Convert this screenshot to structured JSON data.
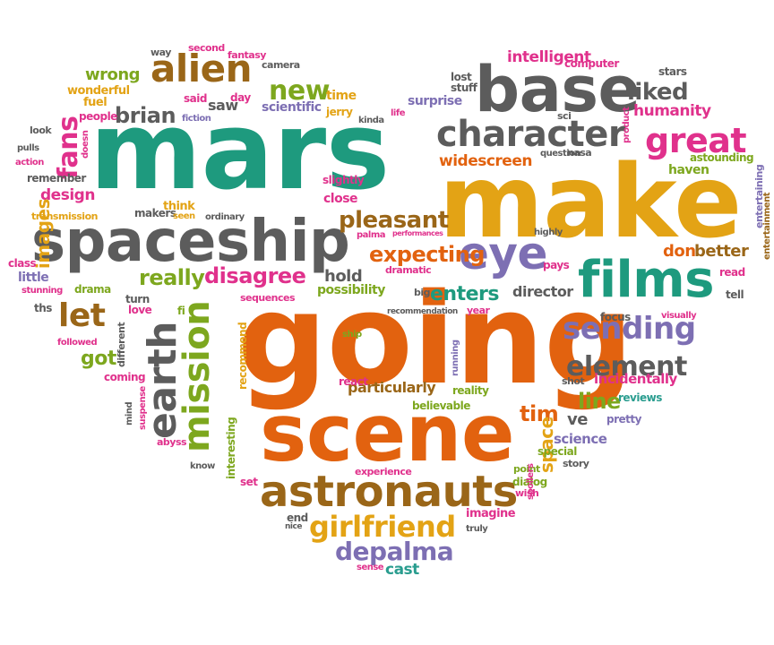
{
  "palette": {
    "green": "#1e9a7e",
    "orange": "#e2620f",
    "gold": "#e3a315",
    "gray": "#5c5c5c",
    "purple": "#7d6fb3",
    "brown": "#9a6618",
    "olive": "#7da71e",
    "pink": "#e0318c",
    "teal": "#2a9d8f"
  },
  "words": [
    {
      "text": "mars",
      "color": "green"
    },
    {
      "text": "make",
      "color": "gold"
    },
    {
      "text": "going",
      "color": "orange"
    },
    {
      "text": "scene",
      "color": "orange"
    },
    {
      "text": "base",
      "color": "gray"
    },
    {
      "text": "spaceship",
      "color": "gray"
    },
    {
      "text": "films",
      "color": "green"
    },
    {
      "text": "character",
      "color": "gray"
    },
    {
      "text": "astronauts",
      "color": "brown"
    },
    {
      "text": "eye",
      "color": "purple"
    },
    {
      "text": "great",
      "color": "pink"
    },
    {
      "text": "alien",
      "color": "brown"
    },
    {
      "text": "earth",
      "color": "gray"
    },
    {
      "text": "mission",
      "color": "olive"
    },
    {
      "text": "sending",
      "color": "purple"
    },
    {
      "text": "element",
      "color": "gray"
    },
    {
      "text": "girlfriend",
      "color": "gold"
    },
    {
      "text": "depalma",
      "color": "purple"
    },
    {
      "text": "new",
      "color": "olive"
    },
    {
      "text": "brian",
      "color": "gray"
    },
    {
      "text": "liked",
      "color": "gray"
    },
    {
      "text": "let",
      "color": "brown"
    },
    {
      "text": "fans",
      "color": "pink"
    },
    {
      "text": "pleasant",
      "color": "brown"
    },
    {
      "text": "expecting",
      "color": "orange"
    },
    {
      "text": "really",
      "color": "olive"
    },
    {
      "text": "disagree",
      "color": "pink"
    },
    {
      "text": "enters",
      "color": "green"
    },
    {
      "text": "widescreen",
      "color": "orange"
    },
    {
      "text": "intelligent",
      "color": "pink"
    },
    {
      "text": "humanity",
      "color": "pink"
    },
    {
      "text": "images",
      "color": "gold"
    },
    {
      "text": "design",
      "color": "pink"
    },
    {
      "text": "particularly",
      "color": "brown"
    },
    {
      "text": "line",
      "color": "olive"
    },
    {
      "text": "incidentally",
      "color": "pink"
    },
    {
      "text": "don",
      "color": "orange"
    },
    {
      "text": "better",
      "color": "brown"
    },
    {
      "text": "tim",
      "color": "orange"
    },
    {
      "text": "got",
      "color": "olive"
    },
    {
      "text": "hold",
      "color": "gray"
    },
    {
      "text": "possibility",
      "color": "olive"
    },
    {
      "text": "director",
      "color": "gray"
    },
    {
      "text": "wrong",
      "color": "olive"
    },
    {
      "text": "space",
      "color": "gold"
    },
    {
      "text": "science",
      "color": "purple"
    },
    {
      "text": "cast",
      "color": "teal"
    },
    {
      "text": "scientific",
      "color": "purple"
    },
    {
      "text": "slightly",
      "color": "pink"
    },
    {
      "text": "close",
      "color": "pink"
    },
    {
      "text": "haven",
      "color": "olive"
    },
    {
      "text": "saw",
      "color": "gray"
    },
    {
      "text": "little",
      "color": "purple"
    },
    {
      "text": "surprise",
      "color": "purple"
    },
    {
      "text": "believable",
      "color": "olive"
    },
    {
      "text": "reality",
      "color": "olive"
    },
    {
      "text": "reviews",
      "color": "teal"
    },
    {
      "text": "pretty",
      "color": "purple"
    },
    {
      "text": "ve",
      "color": "gray"
    },
    {
      "text": "focus",
      "color": "gray"
    },
    {
      "text": "drama",
      "color": "olive"
    },
    {
      "text": "turn",
      "color": "gray"
    },
    {
      "text": "love",
      "color": "pink"
    },
    {
      "text": "coming",
      "color": "pink"
    },
    {
      "text": "different",
      "color": "gray"
    },
    {
      "text": "interesting",
      "color": "olive"
    },
    {
      "text": "recommend",
      "color": "gold"
    },
    {
      "text": "set",
      "color": "pink"
    },
    {
      "text": "end",
      "color": "gray"
    },
    {
      "text": "imagine",
      "color": "pink"
    },
    {
      "text": "dialog",
      "color": "olive"
    },
    {
      "text": "special",
      "color": "olive"
    },
    {
      "text": "story",
      "color": "gray"
    },
    {
      "text": "point",
      "color": "olive"
    },
    {
      "text": "wish",
      "color": "pink"
    },
    {
      "text": "experience",
      "color": "pink"
    },
    {
      "text": "react",
      "color": "pink"
    },
    {
      "text": "shot",
      "color": "gray"
    },
    {
      "text": "dramatic",
      "color": "pink"
    },
    {
      "text": "big",
      "color": "gray"
    },
    {
      "text": "year",
      "color": "pink"
    },
    {
      "text": "pays",
      "color": "pink"
    },
    {
      "text": "read",
      "color": "pink"
    },
    {
      "text": "tell",
      "color": "gray"
    },
    {
      "text": "visually",
      "color": "pink"
    },
    {
      "text": "astounding",
      "color": "olive"
    },
    {
      "text": "entertaining",
      "color": "purple"
    },
    {
      "text": "entertainment",
      "color": "brown"
    },
    {
      "text": "stars",
      "color": "gray"
    },
    {
      "text": "computer",
      "color": "pink"
    },
    {
      "text": "lost",
      "color": "gray"
    },
    {
      "text": "stuff",
      "color": "gray"
    },
    {
      "text": "sci",
      "color": "gray"
    },
    {
      "text": "fi",
      "color": "olive"
    },
    {
      "text": "question",
      "color": "gray"
    },
    {
      "text": "nasa",
      "color": "gray"
    },
    {
      "text": "product",
      "color": "pink"
    },
    {
      "text": "highly",
      "color": "gray"
    },
    {
      "text": "time",
      "color": "gold"
    },
    {
      "text": "jerry",
      "color": "gold"
    },
    {
      "text": "kinda",
      "color": "gray"
    },
    {
      "text": "life",
      "color": "pink"
    },
    {
      "text": "way",
      "color": "gray"
    },
    {
      "text": "second",
      "color": "pink"
    },
    {
      "text": "fantasy",
      "color": "pink"
    },
    {
      "text": "camera",
      "color": "gray"
    },
    {
      "text": "wonderful",
      "color": "gold"
    },
    {
      "text": "fuel",
      "color": "gold"
    },
    {
      "text": "people",
      "color": "pink"
    },
    {
      "text": "said",
      "color": "pink"
    },
    {
      "text": "day",
      "color": "pink"
    },
    {
      "text": "fiction",
      "color": "purple"
    },
    {
      "text": "look",
      "color": "gray"
    },
    {
      "text": "pulls",
      "color": "gray"
    },
    {
      "text": "action",
      "color": "pink"
    },
    {
      "text": "doesn",
      "color": "pink"
    },
    {
      "text": "remember",
      "color": "gray"
    },
    {
      "text": "transmission",
      "color": "gold"
    },
    {
      "text": "makers",
      "color": "gray"
    },
    {
      "text": "think",
      "color": "gold"
    },
    {
      "text": "seen",
      "color": "gold"
    },
    {
      "text": "ordinary",
      "color": "gray"
    },
    {
      "text": "class",
      "color": "pink"
    },
    {
      "text": "stunning",
      "color": "pink"
    },
    {
      "text": "ths",
      "color": "gray"
    },
    {
      "text": "followed",
      "color": "pink"
    },
    {
      "text": "mind",
      "color": "gray"
    },
    {
      "text": "suspense",
      "color": "pink"
    },
    {
      "text": "abyss",
      "color": "pink"
    },
    {
      "text": "know",
      "color": "gray"
    },
    {
      "text": "sequences",
      "color": "pink"
    },
    {
      "text": "palma",
      "color": "pink"
    },
    {
      "text": "performances",
      "color": "pink"
    },
    {
      "text": "recommendation",
      "color": "gray"
    },
    {
      "text": "ship",
      "color": "olive"
    },
    {
      "text": "running",
      "color": "purple"
    },
    {
      "text": "spoilers",
      "color": "pink"
    },
    {
      "text": "nice",
      "color": "gray"
    },
    {
      "text": "truly",
      "color": "gray"
    },
    {
      "text": "sense",
      "color": "pink"
    }
  ]
}
